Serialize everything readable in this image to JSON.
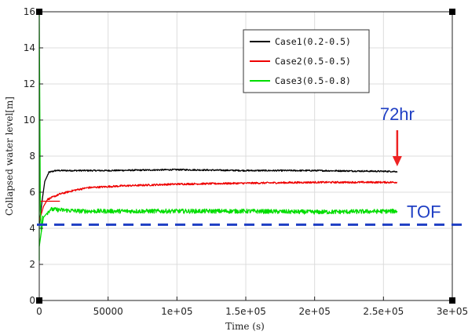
{
  "chart_data": {
    "type": "line",
    "xlabel": "Time (s)",
    "ylabel": "Collapsed water level[m]",
    "xlim": [
      0,
      300000
    ],
    "ylim": [
      0,
      16
    ],
    "x_ticks": [
      {
        "value": 0,
        "label": "0"
      },
      {
        "value": 50000,
        "label": "50000"
      },
      {
        "value": 100000,
        "label": "1e+05"
      },
      {
        "value": 150000,
        "label": "1.5e+05"
      },
      {
        "value": 200000,
        "label": "2e+05"
      },
      {
        "value": 250000,
        "label": "2.5e+05"
      },
      {
        "value": 300000,
        "label": "3e+05"
      }
    ],
    "y_ticks": [
      {
        "value": 0,
        "label": "0"
      },
      {
        "value": 2,
        "label": "2"
      },
      {
        "value": 4,
        "label": "4"
      },
      {
        "value": 6,
        "label": "6"
      },
      {
        "value": 8,
        "label": "8"
      },
      {
        "value": 10,
        "label": "10"
      },
      {
        "value": 12,
        "label": "12"
      },
      {
        "value": 14,
        "label": "14"
      },
      {
        "value": 16,
        "label": "16"
      }
    ],
    "grid": true,
    "legend_position": "top-right",
    "series": [
      {
        "name": "Case1(0.2-0.5)",
        "color": "#000000",
        "noise": 0.04,
        "points": [
          [
            0,
            4.2
          ],
          [
            2000,
            5.5
          ],
          [
            4000,
            6.6
          ],
          [
            7000,
            7.1
          ],
          [
            12000,
            7.2
          ],
          [
            50000,
            7.2
          ],
          [
            100000,
            7.25
          ],
          [
            150000,
            7.2
          ],
          [
            200000,
            7.2
          ],
          [
            260000,
            7.15
          ]
        ]
      },
      {
        "name": "Case2(0.5-0.5)",
        "color": "#ee0000",
        "noise": 0.05,
        "points": [
          [
            0,
            4.4
          ],
          [
            3000,
            5.2
          ],
          [
            6000,
            5.6
          ],
          [
            15000,
            5.9
          ],
          [
            25000,
            6.1
          ],
          [
            35000,
            6.25
          ],
          [
            60000,
            6.35
          ],
          [
            100000,
            6.45
          ],
          [
            150000,
            6.5
          ],
          [
            200000,
            6.55
          ],
          [
            260000,
            6.55
          ]
        ]
      },
      {
        "name": "Case3(0.5-0.8)",
        "color": "#00dd00",
        "noise": 0.12,
        "points": [
          [
            0,
            3.0
          ],
          [
            3000,
            4.6
          ],
          [
            8000,
            5.05
          ],
          [
            30000,
            4.95
          ],
          [
            100000,
            4.95
          ],
          [
            150000,
            4.95
          ],
          [
            200000,
            4.9
          ],
          [
            260000,
            4.95
          ]
        ]
      }
    ],
    "annotations": [
      {
        "id": "tof",
        "text": "TOF",
        "y": 4.2,
        "color": "#1f3fc4"
      },
      {
        "id": "hr72",
        "text": "72hr",
        "x": 260000,
        "color": "#ee2222"
      }
    ]
  }
}
